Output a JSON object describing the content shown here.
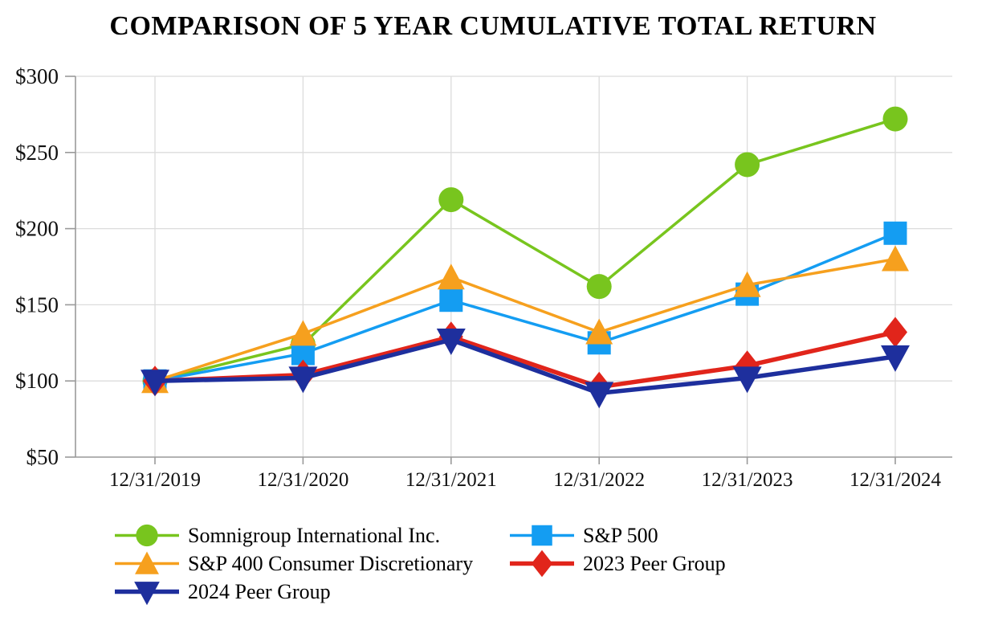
{
  "title": "COMPARISON OF 5 YEAR CUMULATIVE TOTAL RETURN",
  "chart_data": {
    "type": "line",
    "title": "COMPARISON OF 5 YEAR CUMULATIVE TOTAL RETURN",
    "categories": [
      "12/31/2019",
      "12/31/2020",
      "12/31/2021",
      "12/31/2022",
      "12/31/2023",
      "12/31/2024"
    ],
    "series": [
      {
        "name": "Somnigroup International Inc.",
        "color": "#78C51E",
        "marker": "circle",
        "line_width": 3.5,
        "values": [
          100,
          124,
          219,
          162,
          242,
          272
        ]
      },
      {
        "name": "S&P 500",
        "color": "#149DF2",
        "marker": "square",
        "line_width": 3.5,
        "values": [
          100,
          118,
          153,
          125,
          157,
          197
        ]
      },
      {
        "name": "S&P 400 Consumer Discretionary",
        "color": "#F6A01E",
        "marker": "triangle-up",
        "line_width": 3.5,
        "values": [
          100,
          131,
          168,
          132,
          163,
          180
        ]
      },
      {
        "name": "2023 Peer Group",
        "color": "#E1251B",
        "marker": "diamond",
        "line_width": 5.5,
        "values": [
          100,
          104,
          129,
          96,
          110,
          132
        ]
      },
      {
        "name": "2024 Peer Group",
        "color": "#1E2F9D",
        "marker": "triangle-down",
        "line_width": 5.5,
        "values": [
          100,
          102,
          127,
          92,
          102,
          116
        ]
      }
    ],
    "y_ticks": [
      "$50",
      "$100",
      "$150",
      "$200",
      "$250",
      "$300"
    ],
    "y_axis": {
      "min": 50,
      "max": 300,
      "step": 50,
      "prefix": "$"
    },
    "xlabel": "",
    "ylabel": "",
    "grid": true,
    "legend_position": "bottom"
  },
  "colors": {
    "background": "#FFFFFF",
    "grid": "#DCDCDC",
    "axis": "#9A9A9A",
    "text": "#000000"
  }
}
